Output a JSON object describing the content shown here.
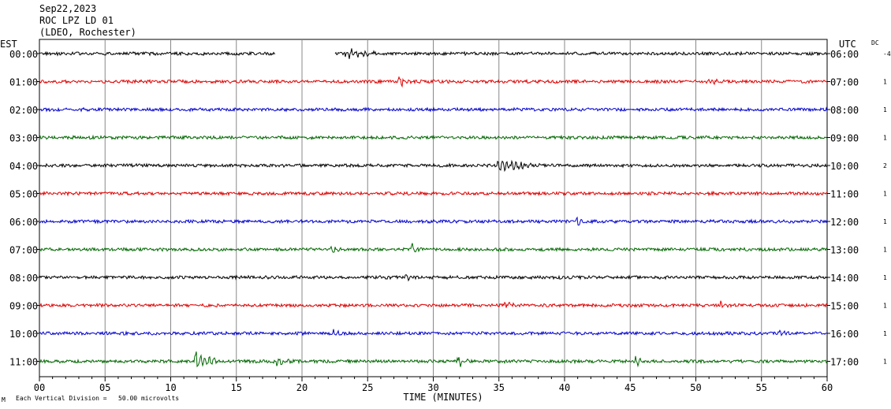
{
  "header": {
    "date": "Sep22,2023",
    "station": "ROC LPZ LD 01",
    "network": "(LDEO, Rochester)"
  },
  "left_axis_label": "EST",
  "right_axis_label": "UTC",
  "dc_label": "DC",
  "footer_note": "Each Vertical Division =   50.00 microvolts",
  "footer_logo": "M",
  "chart_data": {
    "type": "line",
    "title": "",
    "xlabel": "TIME (MINUTES)",
    "ylabel": "",
    "x_range": [
      0,
      60
    ],
    "x_ticks": [
      "00",
      "05",
      "10",
      "15",
      "20",
      "25",
      "30",
      "35",
      "40",
      "45",
      "50",
      "55",
      "60"
    ],
    "grid": true,
    "trace_colors": [
      "#000000",
      "#dd0000",
      "#0000cc",
      "#006600"
    ],
    "rows": [
      {
        "est": "00:00",
        "utc": "06:00",
        "dc": "-4",
        "color": "#000000",
        "gap": [
          18,
          22.5
        ],
        "events": [
          {
            "t": 23.5,
            "amp": 1.5,
            "dur": 2.5
          }
        ]
      },
      {
        "est": "01:00",
        "utc": "07:00",
        "dc": "1",
        "color": "#dd0000",
        "gap": null,
        "events": [
          {
            "t": 27.5,
            "amp": 1.8,
            "dur": 0.8
          },
          {
            "t": 51,
            "amp": 1.6,
            "dur": 0.7
          }
        ]
      },
      {
        "est": "02:00",
        "utc": "08:00",
        "dc": "1",
        "color": "#0000cc",
        "gap": null,
        "events": []
      },
      {
        "est": "03:00",
        "utc": "09:00",
        "dc": "1",
        "color": "#006600",
        "gap": null,
        "events": []
      },
      {
        "est": "04:00",
        "utc": "10:00",
        "dc": "2",
        "color": "#000000",
        "gap": null,
        "events": [
          {
            "t": 35,
            "amp": 2.2,
            "dur": 3.5
          }
        ]
      },
      {
        "est": "05:00",
        "utc": "11:00",
        "dc": "1",
        "color": "#dd0000",
        "gap": null,
        "events": []
      },
      {
        "est": "06:00",
        "utc": "12:00",
        "dc": "1",
        "color": "#0000cc",
        "gap": null,
        "events": [
          {
            "t": 41,
            "amp": 1.5,
            "dur": 0.6
          }
        ]
      },
      {
        "est": "07:00",
        "utc": "13:00",
        "dc": "1",
        "color": "#006600",
        "gap": null,
        "events": [
          {
            "t": 22.3,
            "amp": 1.5,
            "dur": 0.6
          },
          {
            "t": 28.5,
            "amp": 1.4,
            "dur": 0.6
          }
        ]
      },
      {
        "est": "08:00",
        "utc": "14:00",
        "dc": "1",
        "color": "#000000",
        "gap": null,
        "events": [
          {
            "t": 28,
            "amp": 1.3,
            "dur": 0.6
          }
        ]
      },
      {
        "est": "09:00",
        "utc": "15:00",
        "dc": "1",
        "color": "#dd0000",
        "gap": null,
        "events": [
          {
            "t": 35.5,
            "amp": 1.3,
            "dur": 0.6
          },
          {
            "t": 52,
            "amp": 1.3,
            "dur": 0.6
          }
        ]
      },
      {
        "est": "10:00",
        "utc": "16:00",
        "dc": "1",
        "color": "#0000cc",
        "gap": null,
        "events": [
          {
            "t": 22.5,
            "amp": 1.4,
            "dur": 0.8
          },
          {
            "t": 56.5,
            "amp": 1.3,
            "dur": 0.6
          }
        ]
      },
      {
        "est": "11:00",
        "utc": "17:00",
        "dc": "1",
        "color": "#006600",
        "gap": null,
        "events": [
          {
            "t": 12,
            "amp": 3.2,
            "dur": 1.6
          },
          {
            "t": 18,
            "amp": 1.8,
            "dur": 1.4
          },
          {
            "t": 32,
            "amp": 1.5,
            "dur": 0.8
          },
          {
            "t": 45.5,
            "amp": 1.4,
            "dur": 0.6
          }
        ]
      }
    ]
  }
}
